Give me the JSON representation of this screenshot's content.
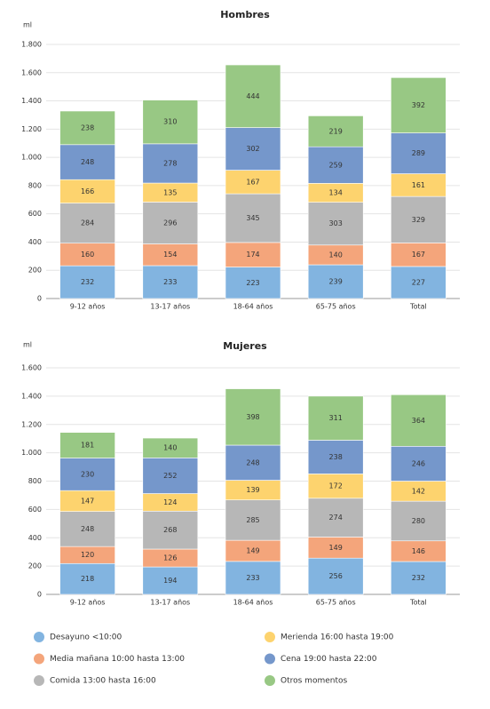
{
  "legend": [
    {
      "name": "Desayuno <10:00",
      "color": "#82b4e0"
    },
    {
      "name": "Media mañana 10:00 hasta 13:00",
      "color": "#f4a57b"
    },
    {
      "name": "Comida 13:00 hasta 16:00",
      "color": "#b7b7b7"
    },
    {
      "name": "Merienda 16:00 hasta 19:00",
      "color": "#fdd36e"
    },
    {
      "name": "Cena 19:00 hasta 22:00",
      "color": "#7597cb"
    },
    {
      "name": "Otros momentos",
      "color": "#98c884"
    }
  ],
  "chart_data": [
    {
      "type": "stacked_bar",
      "title": "Hombres",
      "ylabel": "ml",
      "categories": [
        "9-12 años",
        "13-17 años",
        "18-64 años",
        "65-75 años",
        "Total"
      ],
      "ylim": [
        0,
        1800
      ],
      "yticks": [
        0,
        200,
        400,
        600,
        800,
        {
          "value": 1000,
          "label": "1.000"
        },
        {
          "value": 1200,
          "label": "1.200"
        },
        {
          "value": 1400,
          "label": "1.400"
        },
        {
          "value": 1600,
          "label": "1.600"
        },
        {
          "value": 1800,
          "label": "1.800"
        }
      ],
      "grid": true,
      "series": [
        {
          "values": [
            232,
            233,
            223,
            239,
            227
          ]
        },
        {
          "values": [
            160,
            154,
            174,
            140,
            167
          ]
        },
        {
          "values": [
            284,
            296,
            345,
            303,
            329
          ]
        },
        {
          "values": [
            166,
            135,
            167,
            134,
            161
          ]
        },
        {
          "values": [
            248,
            278,
            302,
            259,
            289
          ]
        },
        {
          "values": [
            238,
            310,
            444,
            219,
            392
          ]
        }
      ]
    },
    {
      "type": "stacked_bar",
      "title": "Mujeres",
      "ylabel": "ml",
      "categories": [
        "9-12 años",
        "13-17 años",
        "18-64 años",
        "65-75 años",
        "Total"
      ],
      "ylim": [
        0,
        1600
      ],
      "yticks": [
        0,
        200,
        400,
        600,
        800,
        {
          "value": 1000,
          "label": "1.000"
        },
        {
          "value": 1200,
          "label": "1.200"
        },
        {
          "value": 1400,
          "label": "1.400"
        },
        {
          "value": 1600,
          "label": "1.600"
        }
      ],
      "grid": true,
      "series": [
        {
          "values": [
            218,
            194,
            233,
            256,
            232
          ]
        },
        {
          "values": [
            120,
            126,
            149,
            149,
            146
          ]
        },
        {
          "values": [
            248,
            268,
            285,
            274,
            280
          ]
        },
        {
          "values": [
            147,
            124,
            139,
            172,
            142
          ]
        },
        {
          "values": [
            230,
            252,
            248,
            238,
            246
          ]
        },
        {
          "values": [
            181,
            140,
            398,
            311,
            364
          ]
        }
      ]
    }
  ]
}
